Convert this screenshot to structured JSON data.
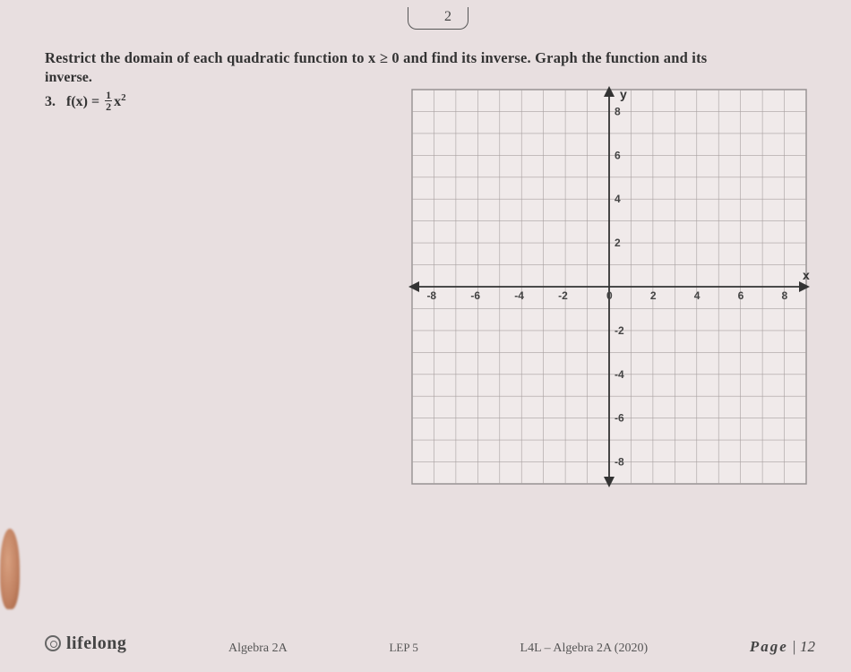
{
  "topTab": "2",
  "instruction": "Restrict the domain of each quadratic function to x ≥ 0 and find its inverse. Graph the function and its",
  "instruction2": "inverse.",
  "problem": {
    "number": "3.",
    "lhs": "f(x) =",
    "frac_n": "1",
    "frac_d": "2",
    "var": "x",
    "exp": "2"
  },
  "axes": {
    "ylabel": "y",
    "xlabel": "x",
    "xmin": -9,
    "xmax": 9,
    "xstep": 2,
    "ymin": -9,
    "ymax": 9,
    "ystep": 2,
    "xticks": [
      "-8",
      "-6",
      "-4",
      "-2",
      "0",
      "2",
      "4",
      "6",
      "8"
    ],
    "yticks_pos": [
      "2",
      "4",
      "6",
      "8"
    ],
    "yticks_neg": [
      "-2",
      "-4",
      "-6",
      "-8"
    ],
    "grid_color": "#a8a0a0",
    "bg_color": "#efe8e8",
    "axis_color": "#333333"
  },
  "footer": {
    "brand": "lifelong",
    "course": "Algebra 2A",
    "lep": "LEP 5",
    "l4l": "L4L – Algebra 2A (2020)",
    "pageWord": "Page",
    "pageSep": "|",
    "pageNum": "12"
  }
}
